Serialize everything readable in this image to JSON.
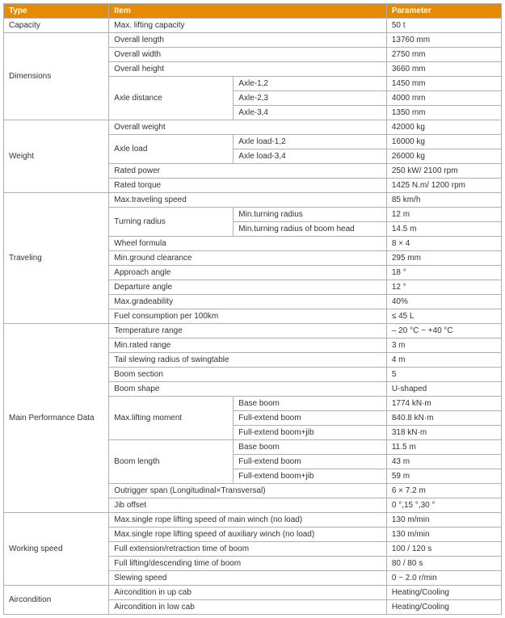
{
  "header": {
    "type": "Type",
    "item": "Item",
    "parameter": "Parameter"
  },
  "header_bg": "#e68a00",
  "header_color": "#ffffff",
  "border_color": "#b0b0b0",
  "font_size": 10,
  "groups": [
    {
      "type": "Capacity",
      "rows": [
        {
          "c2": "Max. lifting capacity",
          "span2": 2,
          "p": "50 t"
        }
      ]
    },
    {
      "type": "Dimensions",
      "rows": [
        {
          "c2": "Overall length",
          "span2": 2,
          "p": "13760 mm"
        },
        {
          "c2": "Overall width",
          "span2": 2,
          "p": "2750 mm"
        },
        {
          "c2": "Overall height",
          "span2": 2,
          "p": "3660 mm"
        },
        {
          "c2": "Axle distance",
          "rowspan2": 3,
          "c3": "Axle-1,2",
          "p": "1450 mm"
        },
        {
          "c3": "Axle-2,3",
          "p": "4000 mm"
        },
        {
          "c3": "Axle-3,4",
          "p": "1350 mm"
        }
      ]
    },
    {
      "type": "Weight",
      "rows": [
        {
          "c2": "Overall weight",
          "span2": 2,
          "p": "42000 kg"
        },
        {
          "c2": "Axle load",
          "rowspan2": 2,
          "c3": "Axle load-1,2",
          "p": "16000 kg"
        },
        {
          "c3": "Axle load-3,4",
          "p": "26000 kg"
        },
        {
          "c2": "Rated power",
          "span2": 2,
          "p": "250 kW/ 2100 rpm"
        },
        {
          "c2": "Rated torque",
          "span2": 2,
          "p": "1425 N.m/ 1200 rpm"
        }
      ]
    },
    {
      "type": "Traveling",
      "rows": [
        {
          "c2": "Max.traveling speed",
          "span2": 2,
          "p": "85 km/h"
        },
        {
          "c2": "Turning radius",
          "rowspan2": 2,
          "c3": "Min.turning radius",
          "p": "12 m"
        },
        {
          "c3": "Min.turning radius of boom head",
          "p": "14.5 m"
        },
        {
          "c2": "Wheel formula",
          "span2": 2,
          "p": "8 × 4"
        },
        {
          "c2": "Min.ground clearance",
          "span2": 2,
          "p": "295 mm"
        },
        {
          "c2": "Approach angle",
          "span2": 2,
          "p": "18 °"
        },
        {
          "c2": "Departure angle",
          "span2": 2,
          "p": "12 °"
        },
        {
          "c2": "Max.gradeability",
          "span2": 2,
          "p": "40%"
        },
        {
          "c2": "Fuel consumption per 100km",
          "span2": 2,
          "p": "≤ 45 L"
        }
      ]
    },
    {
      "type": "Main Performance Data",
      "rows": [
        {
          "c2": "Temperature range",
          "span2": 2,
          "p": "– 20 °C ~ +40 °C"
        },
        {
          "c2": "Min.rated range",
          "span2": 2,
          "p": "3 m"
        },
        {
          "c2": "Tail slewing radius of swingtable",
          "span2": 2,
          "p": "4 m"
        },
        {
          "c2": "Boom section",
          "span2": 2,
          "p": "5"
        },
        {
          "c2": "Boom shape",
          "span2": 2,
          "p": "U-shaped"
        },
        {
          "c2": "Max.lifting moment",
          "rowspan2": 3,
          "c3": "Base boom",
          "p": "1774 kN·m"
        },
        {
          "c3": "Full-extend boom",
          "p": "840.8 kN·m"
        },
        {
          "c3": "Full-extend boom+jib",
          "p": "318 kN·m"
        },
        {
          "c2": "Boom length",
          "rowspan2": 3,
          "c3": "Base boom",
          "p": "11.5 m"
        },
        {
          "c3": "Full-extend boom",
          "p": "43 m"
        },
        {
          "c3": "Full-extend boom+jib",
          "p": "59 m"
        },
        {
          "c2": "Outrigger span (Longitudinal×Transversal)",
          "span2": 2,
          "p": "6 × 7.2 m"
        },
        {
          "c2": "Jib offset",
          "span2": 2,
          "p": "0 °,15 °,30 °"
        }
      ]
    },
    {
      "type": "Working speed",
      "rows": [
        {
          "c2": "Max.single rope lifting speed of main winch (no load)",
          "span2": 2,
          "p": "130  m/min"
        },
        {
          "c2": "Max.single rope lifting speed of auxiliary winch (no load)",
          "span2": 2,
          "p": "130  m/min"
        },
        {
          "c2": "Full extension/retraction time of boom",
          "span2": 2,
          "p": "100 / 120 s"
        },
        {
          "c2": "Full lifting/descending time of boom",
          "span2": 2,
          "p": "80 / 80 s"
        },
        {
          "c2": "Slewing speed",
          "span2": 2,
          "p": "0 ~ 2.0 r/min"
        }
      ]
    },
    {
      "type": "Aircondition",
      "rows": [
        {
          "c2": "Aircondition in up cab",
          "span2": 2,
          "p": "Heating/Cooling"
        },
        {
          "c2": "Aircondition in low cab",
          "span2": 2,
          "p": "Heating/Cooling"
        }
      ]
    }
  ]
}
